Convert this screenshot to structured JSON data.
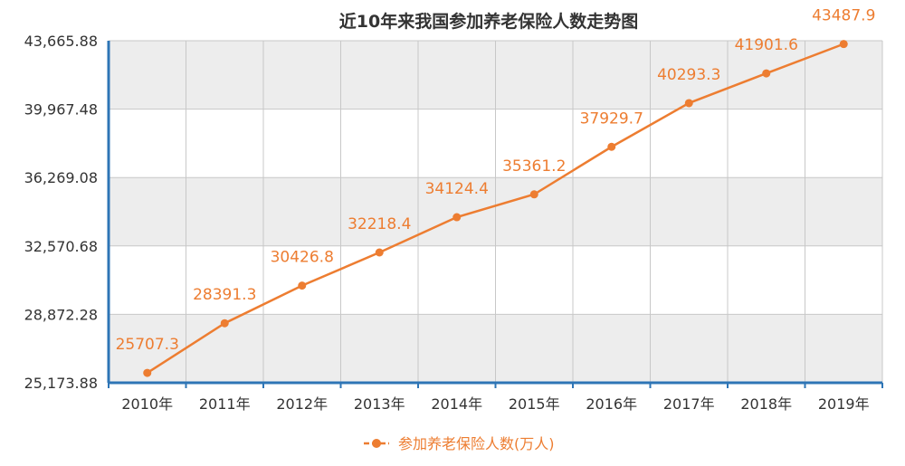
{
  "chart_data": {
    "type": "line",
    "title": "近10年来我国参加养老保险人数走势图",
    "categories": [
      "2010年",
      "2011年",
      "2012年",
      "2013年",
      "2014年",
      "2015年",
      "2016年",
      "2017年",
      "2018年",
      "2019年"
    ],
    "series": [
      {
        "name": "参加养老保险人数(万人)",
        "values": [
          25707.3,
          28391.3,
          30426.8,
          32218.4,
          34124.4,
          35361.2,
          37929.7,
          40293.3,
          41901.6,
          43487.9
        ],
        "labels": [
          "25707.3",
          "28391.3",
          "30426.8",
          "32218.4",
          "34124.4",
          "35361.2",
          "37929.7",
          "40293.3",
          "41901.6",
          "43487.9"
        ]
      }
    ],
    "yticks": [
      25173.88,
      28872.28,
      32570.68,
      36269.08,
      39967.48,
      43665.88
    ],
    "ytick_labels": [
      "25,173.88",
      "28,872.28",
      "32,570.68",
      "36,269.08",
      "39,967.48",
      "43,665.88"
    ],
    "ylim": [
      25173.88,
      43665.88
    ],
    "xlabel": "",
    "ylabel": "",
    "grid": true,
    "legend": "bottom",
    "colors": {
      "line": "#ED7D31",
      "axis": "#2E75B6",
      "grid": "#C8C8C8",
      "band": "#EDEDED"
    }
  }
}
